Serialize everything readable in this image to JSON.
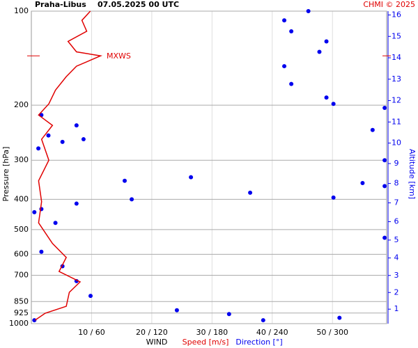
{
  "chart_data": {
    "type": "line",
    "title": "Praha-Libus",
    "subtitle": "07.05.2025 00 UTC",
    "credit": "CHMI © 2025",
    "xlabel": "WIND",
    "ylabel": "Pressure [hPa]",
    "y2label": "Altitude [km]",
    "ylim": [
      100,
      1000
    ],
    "log_y": true,
    "yticks": [
      100,
      200,
      300,
      400,
      500,
      600,
      700,
      850,
      925,
      1000
    ],
    "y2ticks": [
      1,
      2,
      3,
      4,
      5,
      6,
      7,
      8,
      9,
      10,
      11,
      12,
      13,
      14,
      15,
      16
    ],
    "xlim": [
      0,
      59
    ],
    "x2lim": [
      0,
      354
    ],
    "xticks": [
      {
        "value": 10,
        "label": "10 / 60"
      },
      {
        "value": 20,
        "label": "20 / 120"
      },
      {
        "value": 30,
        "label": "30 / 180"
      },
      {
        "value": 40,
        "label": "40 / 240"
      },
      {
        "value": 50,
        "label": "50 / 300"
      }
    ],
    "grid": true,
    "annotation": {
      "text": "MXWS",
      "pressure": 139
    },
    "series": [
      {
        "name": "Speed [m/s]",
        "color": "#e00000",
        "axis": "x",
        "pressure": [
          100,
          107,
          116,
          125,
          135,
          139,
          150,
          162,
          179,
          198,
          215,
          232,
          257,
          300,
          349,
          407,
          476,
          554,
          614,
          681,
          735,
          794,
          880,
          926,
          975
        ],
        "values": [
          9.8,
          8.4,
          9.2,
          6.1,
          7.5,
          11.5,
          7.5,
          5.8,
          4.0,
          2.9,
          1.2,
          3.5,
          1.7,
          2.9,
          1.2,
          1.7,
          1.2,
          3.5,
          5.8,
          4.6,
          8.1,
          6.3,
          5.8,
          2.3,
          0.6
        ]
      },
      {
        "name": "Direction [°]",
        "color": "#0000ee",
        "axis": "x2",
        "pressure": [
          100,
          107,
          116,
          125,
          135,
          150,
          171,
          189,
          198,
          204,
          215,
          232,
          240,
          250,
          257,
          262,
          275,
          300,
          340,
          349,
          355,
          363,
          381,
          395,
          400,
          413,
          430,
          440,
          476,
          531,
          589,
          655,
          731,
          815,
          906,
          932,
          958,
          975,
          975
        ],
        "values": [
          276,
          252,
          259,
          294,
          287,
          252,
          259,
          294,
          301,
          352,
          10,
          45,
          340,
          17,
          52,
          31,
          7,
          352,
          159,
          93,
          330,
          352,
          218,
          301,
          100,
          45,
          10,
          3,
          24,
          352,
          10,
          31,
          45,
          59,
          145,
          197,
          307,
          231,
          3
        ]
      }
    ]
  }
}
